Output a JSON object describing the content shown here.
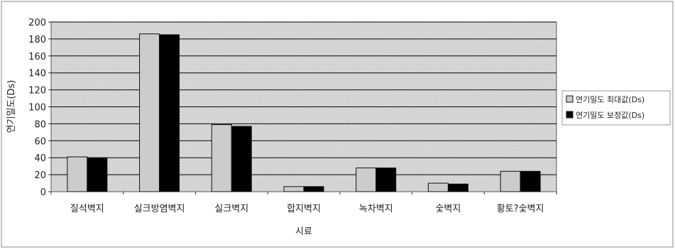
{
  "chart_data": {
    "type": "bar",
    "title": "",
    "xlabel": "시료",
    "ylabel": "연기밀도(Ds)",
    "ylim": [
      0,
      200
    ],
    "yticks": [
      0,
      20,
      40,
      60,
      80,
      100,
      120,
      140,
      160,
      180,
      200
    ],
    "grid": true,
    "legend_position": "right",
    "categories": [
      "질석벽지",
      "실크방염벽지",
      "실크벽지",
      "합지벽지",
      "녹차벽지",
      "숯벽지",
      "황토?숯벽지"
    ],
    "series": [
      {
        "name": "연기밀도 최대값(Ds)",
        "values": [
          41,
          186,
          79,
          6,
          28,
          10,
          24
        ],
        "color": "#cccccc"
      },
      {
        "name": "연기밀도 보정값(Ds)",
        "values": [
          40,
          185,
          77,
          6,
          28,
          9,
          24
        ],
        "color": "#000000"
      }
    ],
    "colors": {
      "plot_background": "#d8d8d8",
      "gridline": "#000000",
      "frame": "#555555"
    }
  }
}
